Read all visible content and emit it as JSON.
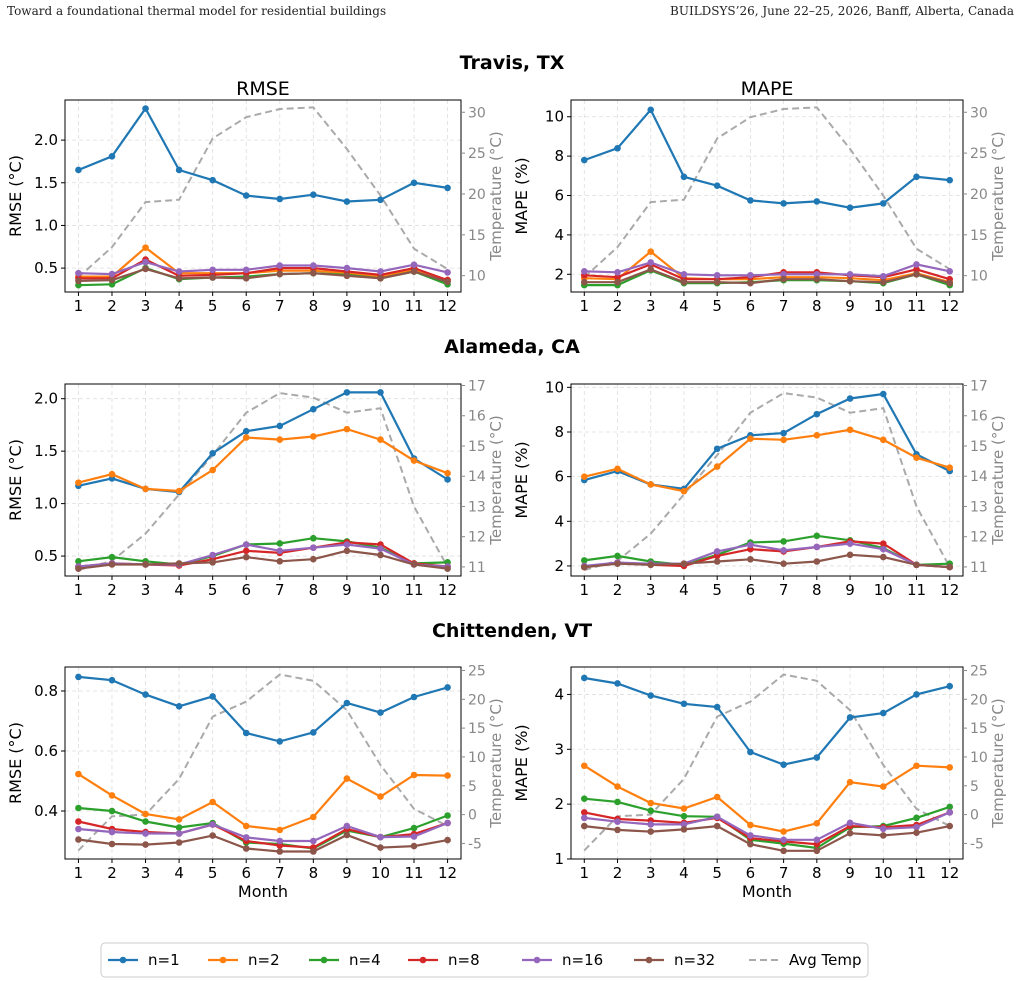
{
  "header": {
    "left": "Toward a foundational thermal model for residential buildings",
    "right": "BUILDSYS’26, June 22–25, 2026, Banff, Alberta, Canada"
  },
  "chart_data": {
    "type": "line",
    "x": [
      1,
      2,
      3,
      4,
      5,
      6,
      7,
      8,
      9,
      10,
      11,
      12
    ],
    "xlabel": "Month",
    "columns": [
      "RMSE",
      "MAPE"
    ],
    "legend": {
      "placement": "bottom-center",
      "entries": [
        "n=1",
        "n=2",
        "n=4",
        "n=8",
        "n=16",
        "n=32",
        "Avg Temp"
      ]
    },
    "series_colors": [
      "#1f77b4",
      "#ff7f0e",
      "#2ca02c",
      "#d62728",
      "#9467bd",
      "#8c564b"
    ],
    "temp_color": "#aaaaaa",
    "grid": true,
    "regions": [
      {
        "title": "Travis, TX",
        "temp": {
          "ylabel": "Temperature (°C)",
          "ylim": [
            8,
            31.5
          ],
          "ticks": [
            10,
            15,
            20,
            25,
            30
          ],
          "values": [
            9.8,
            13.5,
            19,
            19.3,
            26.8,
            29.4,
            30.4,
            30.6,
            25.5,
            19.8,
            13.3,
            10.8
          ]
        },
        "rmse": {
          "ylabel": "RMSE (°C)",
          "ylim": [
            0.22,
            2.47
          ],
          "ticks": [
            0.5,
            1.0,
            1.5,
            2.0
          ],
          "series": [
            {
              "name": "n=1",
              "values": [
                1.65,
                1.81,
                2.37,
                1.65,
                1.53,
                1.35,
                1.31,
                1.36,
                1.28,
                1.3,
                1.5,
                1.44
              ]
            },
            {
              "name": "n=2",
              "values": [
                0.4,
                0.4,
                0.74,
                0.44,
                0.44,
                0.44,
                0.47,
                0.47,
                0.44,
                0.4,
                0.48,
                0.36
              ]
            },
            {
              "name": "n=4",
              "values": [
                0.3,
                0.31,
                0.5,
                0.37,
                0.39,
                0.4,
                0.43,
                0.44,
                0.42,
                0.38,
                0.46,
                0.31
              ]
            },
            {
              "name": "n=8",
              "values": [
                0.38,
                0.38,
                0.6,
                0.41,
                0.42,
                0.44,
                0.5,
                0.5,
                0.46,
                0.42,
                0.5,
                0.36
              ]
            },
            {
              "name": "n=16",
              "values": [
                0.44,
                0.43,
                0.57,
                0.46,
                0.48,
                0.48,
                0.53,
                0.53,
                0.5,
                0.46,
                0.54,
                0.45
              ]
            },
            {
              "name": "n=32",
              "values": [
                0.35,
                0.36,
                0.49,
                0.38,
                0.39,
                0.38,
                0.43,
                0.44,
                0.41,
                0.38,
                0.46,
                0.34
              ]
            }
          ]
        },
        "mape": {
          "ylabel": "MAPE (%)",
          "ylim": [
            1.1,
            10.85
          ],
          "ticks": [
            2,
            4,
            6,
            8,
            10
          ],
          "series": [
            {
              "name": "n=1",
              "values": [
                7.8,
                8.4,
                10.35,
                6.95,
                6.5,
                5.75,
                5.6,
                5.7,
                5.38,
                5.6,
                6.95,
                6.78
              ]
            },
            {
              "name": "n=2",
              "values": [
                1.8,
                1.75,
                3.15,
                1.8,
                1.75,
                1.75,
                1.85,
                1.85,
                1.8,
                1.7,
                2.05,
                1.6
              ]
            },
            {
              "name": "n=4",
              "values": [
                1.45,
                1.45,
                2.2,
                1.55,
                1.55,
                1.6,
                1.7,
                1.7,
                1.65,
                1.55,
                2.0,
                1.45
              ]
            },
            {
              "name": "n=8",
              "values": [
                1.95,
                1.85,
                2.5,
                1.75,
                1.75,
                1.85,
                2.1,
                2.1,
                1.95,
                1.85,
                2.25,
                1.75
              ]
            },
            {
              "name": "n=16",
              "values": [
                2.15,
                2.1,
                2.6,
                2.0,
                1.95,
                1.95,
                2.0,
                2.0,
                2.0,
                1.9,
                2.5,
                2.15
              ]
            },
            {
              "name": "n=32",
              "values": [
                1.6,
                1.6,
                2.25,
                1.6,
                1.6,
                1.55,
                1.75,
                1.75,
                1.65,
                1.6,
                2.0,
                1.55
              ]
            }
          ]
        }
      },
      {
        "title": "Alameda, CA",
        "temp": {
          "ylabel": "Temperature (°C)",
          "ylim": [
            10.7,
            17.05
          ],
          "ticks": [
            11,
            12,
            13,
            14,
            15,
            16,
            17
          ],
          "values": [
            10.9,
            11.2,
            12.1,
            13.4,
            14.7,
            16.1,
            16.75,
            16.6,
            16.1,
            16.25,
            13.0,
            11.0
          ]
        },
        "rmse": {
          "ylabel": "RMSE (°C)",
          "ylim": [
            0.31,
            2.14
          ],
          "ticks": [
            0.5,
            1.0,
            1.5,
            2.0
          ],
          "series": [
            {
              "name": "n=1",
              "values": [
                1.17,
                1.24,
                1.14,
                1.11,
                1.48,
                1.69,
                1.74,
                1.9,
                2.06,
                2.06,
                1.43,
                1.23
              ]
            },
            {
              "name": "n=2",
              "values": [
                1.2,
                1.28,
                1.14,
                1.12,
                1.32,
                1.63,
                1.61,
                1.64,
                1.71,
                1.61,
                1.41,
                1.29
              ]
            },
            {
              "name": "n=4",
              "values": [
                0.45,
                0.49,
                0.45,
                0.42,
                0.5,
                0.61,
                0.62,
                0.67,
                0.64,
                0.58,
                0.43,
                0.44
              ]
            },
            {
              "name": "n=8",
              "values": [
                0.4,
                0.43,
                0.42,
                0.41,
                0.47,
                0.55,
                0.53,
                0.58,
                0.63,
                0.61,
                0.43,
                0.4
              ]
            },
            {
              "name": "n=16",
              "values": [
                0.4,
                0.43,
                0.42,
                0.42,
                0.51,
                0.61,
                0.55,
                0.58,
                0.61,
                0.57,
                0.42,
                0.4
              ]
            },
            {
              "name": "n=32",
              "values": [
                0.38,
                0.42,
                0.42,
                0.43,
                0.44,
                0.49,
                0.45,
                0.47,
                0.55,
                0.51,
                0.42,
                0.38
              ]
            }
          ]
        },
        "mape": {
          "ylabel": "MAPE (%)",
          "ylim": [
            1.55,
            10.15
          ],
          "ticks": [
            2,
            4,
            6,
            8,
            10
          ],
          "series": [
            {
              "name": "n=1",
              "values": [
                5.85,
                6.25,
                5.65,
                5.45,
                7.25,
                7.85,
                7.95,
                8.8,
                9.5,
                9.7,
                7.0,
                6.25
              ]
            },
            {
              "name": "n=2",
              "values": [
                6.0,
                6.35,
                5.65,
                5.35,
                6.45,
                7.7,
                7.65,
                7.85,
                8.1,
                7.65,
                6.85,
                6.4
              ]
            },
            {
              "name": "n=4",
              "values": [
                2.25,
                2.45,
                2.2,
                2.05,
                2.5,
                3.05,
                3.1,
                3.35,
                3.15,
                2.8,
                2.05,
                2.1
              ]
            },
            {
              "name": "n=8",
              "values": [
                1.95,
                2.15,
                2.05,
                2.0,
                2.45,
                2.75,
                2.65,
                2.85,
                3.1,
                3.0,
                2.05,
                1.95
              ]
            },
            {
              "name": "n=16",
              "values": [
                2.0,
                2.15,
                2.1,
                2.1,
                2.65,
                2.95,
                2.7,
                2.85,
                3.0,
                2.75,
                2.05,
                1.95
              ]
            },
            {
              "name": "n=32",
              "values": [
                1.95,
                2.1,
                2.05,
                2.1,
                2.2,
                2.3,
                2.1,
                2.2,
                2.5,
                2.4,
                2.05,
                1.95
              ]
            }
          ]
        }
      },
      {
        "title": "Chittenden, VT",
        "temp": {
          "ylabel": "Temperature (°C)",
          "ylim": [
            -7.7,
            25.6
          ],
          "ticks": [
            -5,
            0,
            5,
            10,
            15,
            20,
            25
          ],
          "values": [
            -6.2,
            -0.3,
            0.0,
            6.2,
            17.0,
            19.6,
            24.3,
            23.2,
            18.1,
            8.6,
            1.0,
            -2.0
          ]
        },
        "rmse": {
          "ylabel": "RMSE (°C)",
          "ylim": [
            0.24,
            0.88
          ],
          "ticks": [
            0.4,
            0.6,
            0.8
          ],
          "series": [
            {
              "name": "n=1",
              "values": [
                0.847,
                0.836,
                0.788,
                0.749,
                0.782,
                0.66,
                0.632,
                0.662,
                0.76,
                0.728,
                0.78,
                0.812
              ]
            },
            {
              "name": "n=2",
              "values": [
                0.523,
                0.452,
                0.39,
                0.372,
                0.43,
                0.35,
                0.337,
                0.38,
                0.508,
                0.448,
                0.52,
                0.518
              ]
            },
            {
              "name": "n=4",
              "values": [
                0.41,
                0.4,
                0.365,
                0.345,
                0.36,
                0.295,
                0.29,
                0.275,
                0.335,
                0.313,
                0.343,
                0.385
              ]
            },
            {
              "name": "n=8",
              "values": [
                0.365,
                0.34,
                0.33,
                0.325,
                0.355,
                0.3,
                0.285,
                0.278,
                0.34,
                0.313,
                0.323,
                0.36
              ]
            },
            {
              "name": "n=16",
              "values": [
                0.34,
                0.33,
                0.325,
                0.325,
                0.355,
                0.312,
                0.3,
                0.3,
                0.35,
                0.313,
                0.315,
                0.36
              ]
            },
            {
              "name": "n=32",
              "values": [
                0.305,
                0.29,
                0.288,
                0.295,
                0.318,
                0.275,
                0.265,
                0.265,
                0.32,
                0.278,
                0.283,
                0.303
              ]
            }
          ]
        },
        "mape": {
          "ylabel": "MAPE (%)",
          "ylim": [
            1.0,
            4.5
          ],
          "ticks": [
            1,
            2,
            3,
            4
          ],
          "series": [
            {
              "name": "n=1",
              "values": [
                4.3,
                4.2,
                3.98,
                3.83,
                3.77,
                2.95,
                2.72,
                2.85,
                3.58,
                3.66,
                4.0,
                4.15
              ]
            },
            {
              "name": "n=2",
              "values": [
                2.7,
                2.32,
                2.02,
                1.92,
                2.13,
                1.62,
                1.5,
                1.65,
                2.4,
                2.32,
                2.7,
                2.67
              ]
            },
            {
              "name": "n=4",
              "values": [
                2.1,
                2.04,
                1.88,
                1.78,
                1.77,
                1.35,
                1.28,
                1.2,
                1.58,
                1.6,
                1.75,
                1.95
              ]
            },
            {
              "name": "n=8",
              "values": [
                1.85,
                1.73,
                1.7,
                1.66,
                1.75,
                1.38,
                1.32,
                1.27,
                1.6,
                1.58,
                1.62,
                1.85
              ]
            },
            {
              "name": "n=16",
              "values": [
                1.75,
                1.68,
                1.63,
                1.63,
                1.77,
                1.43,
                1.35,
                1.35,
                1.66,
                1.55,
                1.58,
                1.85
              ]
            },
            {
              "name": "n=32",
              "values": [
                1.6,
                1.53,
                1.5,
                1.54,
                1.6,
                1.27,
                1.15,
                1.15,
                1.47,
                1.43,
                1.48,
                1.6
              ]
            }
          ]
        }
      }
    ]
  }
}
